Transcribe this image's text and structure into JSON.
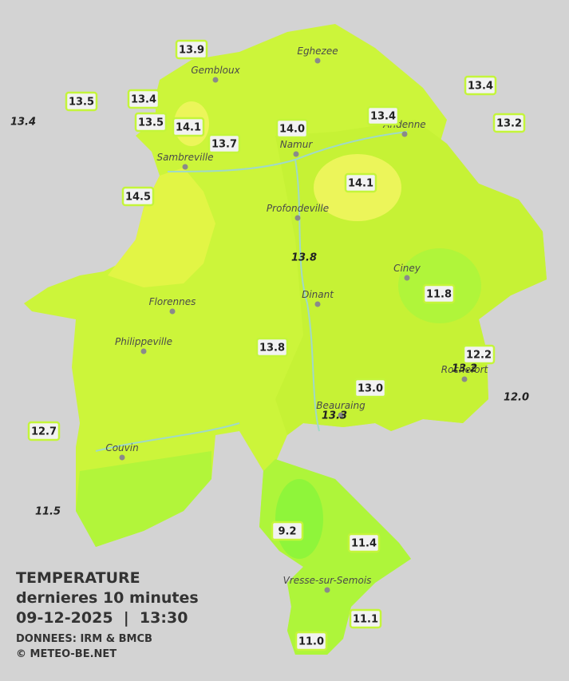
{
  "title": {
    "heading": "TEMPERATURE",
    "subheading": "dernieres 10 minutes",
    "datetime": "09-12-2025  |  13:30",
    "source": "DONNEES: IRM & BMCB",
    "copyright": "© METEO-BE.NET"
  },
  "cities": [
    "Eghezee",
    "Gembloux",
    "Andenne",
    "Namur",
    "Sambreville",
    "Profondeville",
    "Ciney",
    "Dinant",
    "Florennes",
    "Philippeville",
    "Beauraing",
    "Rochefort",
    "Couvin",
    "Vresse-sur-Semois"
  ],
  "stations": [
    {
      "label": "13.9",
      "italic": false
    },
    {
      "label": "13.5",
      "italic": false
    },
    {
      "label": "13.4",
      "italic": false
    },
    {
      "label": "13.4",
      "italic": true
    },
    {
      "label": "13.5",
      "italic": false
    },
    {
      "label": "14.1",
      "italic": false
    },
    {
      "label": "13.7",
      "italic": false
    },
    {
      "label": "14.0",
      "italic": false
    },
    {
      "label": "13.4",
      "italic": false
    },
    {
      "label": "13.4",
      "italic": false
    },
    {
      "label": "13.2",
      "italic": false
    },
    {
      "label": "14.5",
      "italic": false
    },
    {
      "label": "14.1",
      "italic": false
    },
    {
      "label": "13.8",
      "italic": true
    },
    {
      "label": "11.8",
      "italic": false
    },
    {
      "label": "13.8",
      "italic": false
    },
    {
      "label": "12.2",
      "italic": false
    },
    {
      "label": "13.2",
      "italic": true
    },
    {
      "label": "13.0",
      "italic": false
    },
    {
      "label": "12.0",
      "italic": true
    },
    {
      "label": "13.3",
      "italic": true
    },
    {
      "label": "12.7",
      "italic": false
    },
    {
      "label": "11.5",
      "italic": true
    },
    {
      "label": "9.2",
      "italic": false
    },
    {
      "label": "11.4",
      "italic": false
    },
    {
      "label": "11.1",
      "italic": false
    },
    {
      "label": "11.0",
      "italic": false
    }
  ]
}
